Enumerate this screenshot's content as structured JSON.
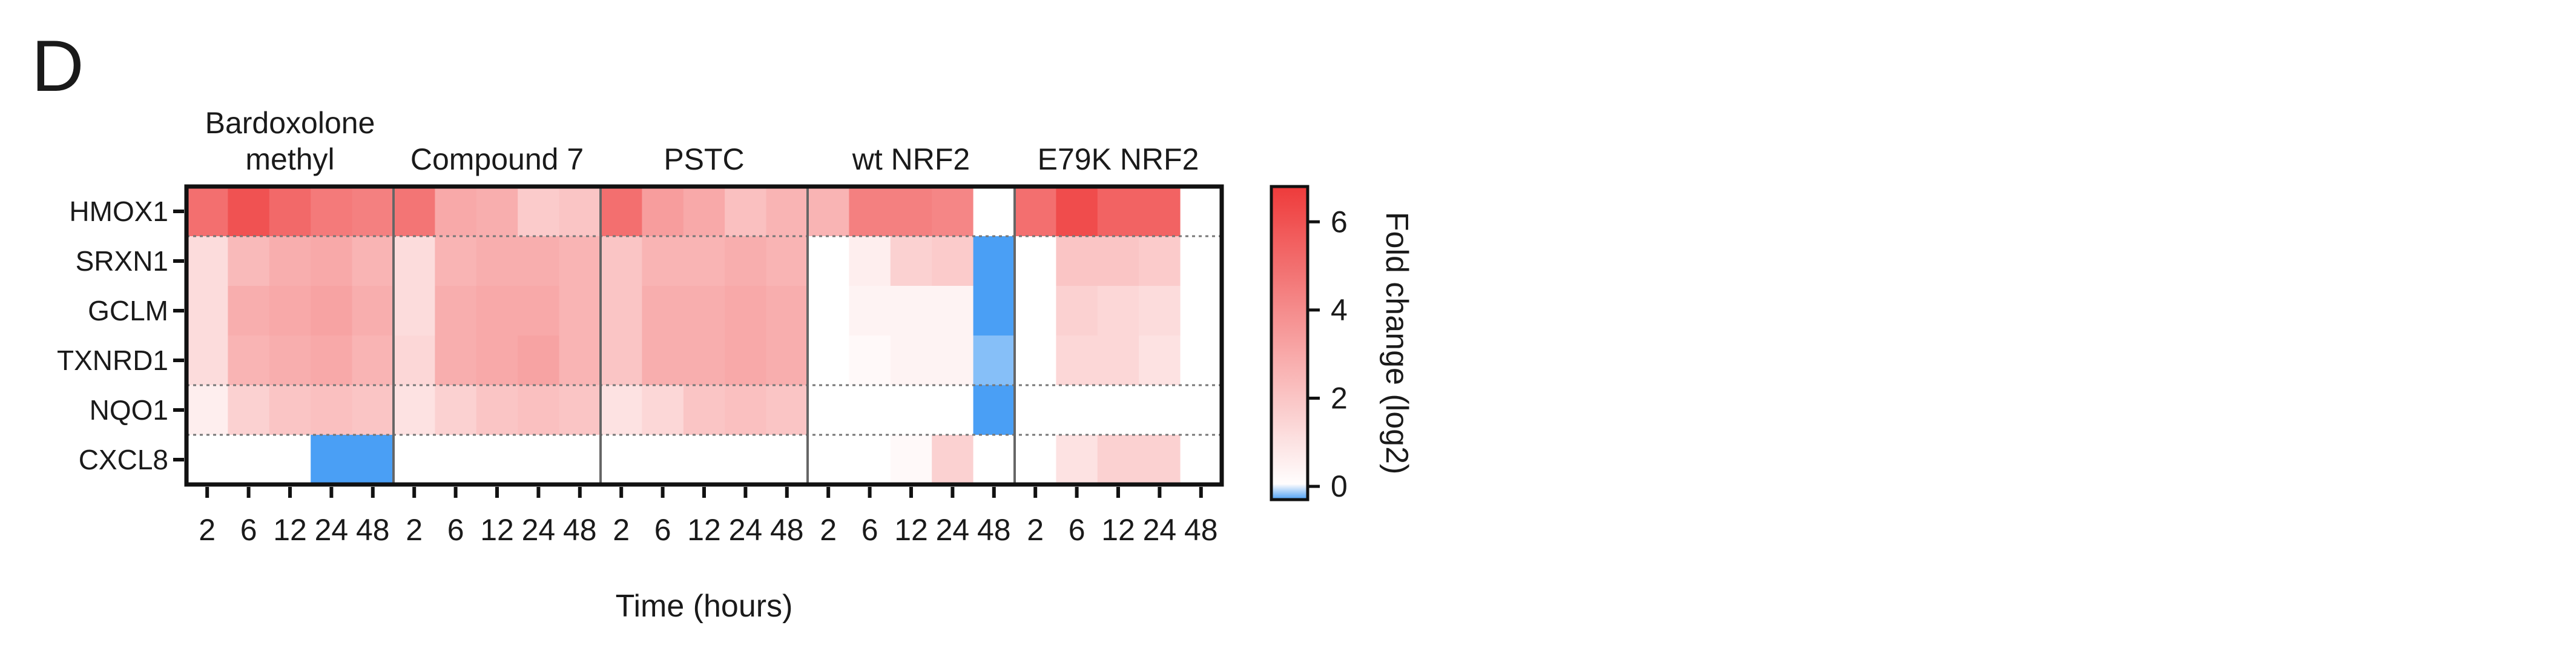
{
  "panel_letter": "D",
  "chart_data": {
    "type": "heatmap",
    "xlabel": "Time (hours)",
    "colorbar_label": "Fold change (log2)",
    "colorbar_ticks": [
      "0",
      "2",
      "4",
      "6"
    ],
    "color_range": [
      -0.3,
      6.8
    ],
    "colors": {
      "low": "#4a9ff5",
      "mid": "#ffffff",
      "high": "#ee3b3b"
    },
    "groups": [
      {
        "name": "Bardoxolone methyl",
        "name_lines": [
          "Bardoxolone",
          "methyl"
        ]
      },
      {
        "name": "Compound 7",
        "name_lines": [
          "Compound 7"
        ]
      },
      {
        "name": "PSTC",
        "name_lines": [
          "PSTC"
        ]
      },
      {
        "name": "wt NRF2",
        "name_lines": [
          "wt NRF2"
        ]
      },
      {
        "name": "E79K NRF2",
        "name_lines": [
          "E79K NRF2"
        ]
      }
    ],
    "timepoints": [
      "2",
      "6",
      "12",
      "24",
      "48"
    ],
    "genes": [
      "HMOX1",
      "SRXN1",
      "GCLM",
      "TXNRD1",
      "NQO1",
      "CXCL8"
    ],
    "row_separators_after": [
      0,
      3,
      4
    ],
    "values": [
      [
        5.0,
        6.0,
        5.2,
        4.6,
        4.4,
        4.8,
        3.0,
        2.8,
        1.8,
        2.0,
        5.0,
        3.4,
        3.0,
        2.2,
        2.6,
        2.6,
        4.4,
        4.4,
        4.2,
        0.0,
        5.0,
        6.2,
        5.4,
        5.4,
        0.0
      ],
      [
        1.2,
        2.4,
        2.8,
        3.0,
        2.6,
        1.2,
        2.6,
        2.8,
        2.8,
        2.6,
        2.0,
        2.6,
        2.6,
        2.8,
        2.6,
        0.0,
        0.6,
        1.6,
        1.8,
        -1.5,
        0.0,
        2.0,
        2.0,
        1.8,
        0.0
      ],
      [
        1.2,
        2.8,
        3.0,
        3.2,
        2.8,
        1.2,
        2.8,
        3.0,
        3.0,
        2.6,
        2.0,
        2.8,
        2.8,
        3.0,
        2.8,
        0.0,
        0.4,
        0.4,
        0.4,
        -0.4,
        0.0,
        1.6,
        1.4,
        1.2,
        0.0
      ],
      [
        1.2,
        2.6,
        2.8,
        3.0,
        2.6,
        1.4,
        2.8,
        3.0,
        3.2,
        2.6,
        2.0,
        2.8,
        2.8,
        3.0,
        2.8,
        0.0,
        0.2,
        0.4,
        0.4,
        -0.2,
        0.0,
        1.4,
        1.4,
        1.0,
        0.0
      ],
      [
        0.6,
        1.6,
        2.0,
        2.2,
        2.0,
        1.0,
        1.6,
        2.0,
        2.2,
        2.0,
        1.0,
        1.4,
        2.0,
        2.2,
        2.0,
        0.0,
        0.0,
        0.0,
        0.0,
        -0.8,
        0.0,
        0.0,
        0.0,
        0.0,
        0.0
      ],
      [
        0.0,
        0.0,
        0.0,
        -0.6,
        -0.8,
        0.0,
        0.0,
        0.0,
        0.0,
        0.0,
        0.0,
        0.0,
        0.0,
        0.0,
        0.0,
        0.0,
        0.0,
        0.2,
        1.6,
        0.0,
        0.0,
        1.0,
        1.6,
        1.6,
        0.0
      ]
    ]
  }
}
